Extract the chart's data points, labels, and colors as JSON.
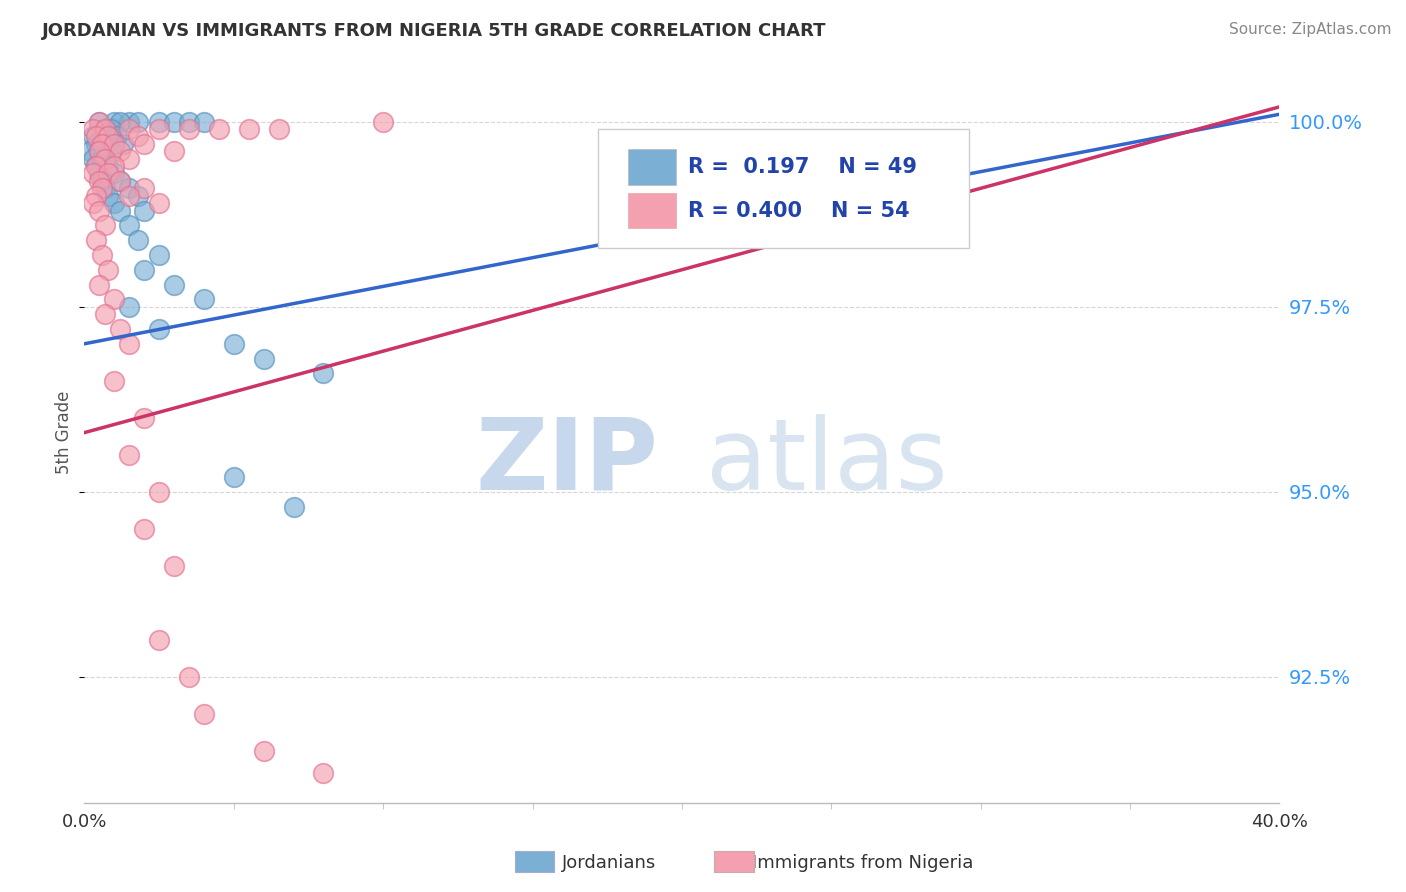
{
  "title": "JORDANIAN VS IMMIGRANTS FROM NIGERIA 5TH GRADE CORRELATION CHART",
  "source": "Source: ZipAtlas.com",
  "ylabel": "5th Grade",
  "ytick_labels": [
    "100.0%",
    "97.5%",
    "95.0%",
    "92.5%"
  ],
  "ytick_values": [
    1.0,
    0.975,
    0.95,
    0.925
  ],
  "xlim": [
    0.0,
    0.4
  ],
  "ylim": [
    0.908,
    1.008
  ],
  "legend_r_blue": "0.197",
  "legend_n_blue": "49",
  "legend_r_pink": "0.400",
  "legend_n_pink": "54",
  "blue_color": "#7BAFD4",
  "pink_color": "#F4A0B0",
  "blue_edge_color": "#5590BE",
  "pink_edge_color": "#E07090",
  "line_blue_color": "#3366CC",
  "line_pink_color": "#CC3366",
  "blue_line_x0": 0.0,
  "blue_line_y0": 0.97,
  "blue_line_x1": 0.4,
  "blue_line_y1": 1.001,
  "pink_line_x0": 0.0,
  "pink_line_y0": 0.958,
  "pink_line_x1": 0.4,
  "pink_line_y1": 1.002,
  "grid_color": "#CCCCCC",
  "grid_style": "--",
  "background_color": "#FFFFFF",
  "blue_scatter": [
    [
      0.005,
      1.0
    ],
    [
      0.01,
      1.0
    ],
    [
      0.015,
      1.0
    ],
    [
      0.012,
      1.0
    ],
    [
      0.018,
      1.0
    ],
    [
      0.025,
      1.0
    ],
    [
      0.03,
      1.0
    ],
    [
      0.035,
      1.0
    ],
    [
      0.04,
      1.0
    ],
    [
      0.007,
      0.999
    ],
    [
      0.009,
      0.999
    ],
    [
      0.003,
      0.998
    ],
    [
      0.006,
      0.998
    ],
    [
      0.008,
      0.998
    ],
    [
      0.011,
      0.998
    ],
    [
      0.004,
      0.997
    ],
    [
      0.007,
      0.997
    ],
    [
      0.013,
      0.997
    ],
    [
      0.002,
      0.996
    ],
    [
      0.005,
      0.996
    ],
    [
      0.009,
      0.996
    ],
    [
      0.003,
      0.995
    ],
    [
      0.006,
      0.995
    ],
    [
      0.004,
      0.994
    ],
    [
      0.008,
      0.994
    ],
    [
      0.005,
      0.993
    ],
    [
      0.01,
      0.993
    ],
    [
      0.006,
      0.992
    ],
    [
      0.012,
      0.992
    ],
    [
      0.007,
      0.991
    ],
    [
      0.015,
      0.991
    ],
    [
      0.008,
      0.99
    ],
    [
      0.018,
      0.99
    ],
    [
      0.01,
      0.989
    ],
    [
      0.012,
      0.988
    ],
    [
      0.02,
      0.988
    ],
    [
      0.015,
      0.986
    ],
    [
      0.018,
      0.984
    ],
    [
      0.025,
      0.982
    ],
    [
      0.02,
      0.98
    ],
    [
      0.03,
      0.978
    ],
    [
      0.04,
      0.976
    ],
    [
      0.015,
      0.975
    ],
    [
      0.025,
      0.972
    ],
    [
      0.05,
      0.97
    ],
    [
      0.06,
      0.968
    ],
    [
      0.08,
      0.966
    ],
    [
      0.05,
      0.952
    ],
    [
      0.07,
      0.948
    ]
  ],
  "pink_scatter": [
    [
      0.005,
      1.0
    ],
    [
      0.1,
      1.0
    ],
    [
      0.003,
      0.999
    ],
    [
      0.007,
      0.999
    ],
    [
      0.015,
      0.999
    ],
    [
      0.025,
      0.999
    ],
    [
      0.035,
      0.999
    ],
    [
      0.045,
      0.999
    ],
    [
      0.055,
      0.999
    ],
    [
      0.065,
      0.999
    ],
    [
      0.004,
      0.998
    ],
    [
      0.008,
      0.998
    ],
    [
      0.018,
      0.998
    ],
    [
      0.006,
      0.997
    ],
    [
      0.01,
      0.997
    ],
    [
      0.02,
      0.997
    ],
    [
      0.005,
      0.996
    ],
    [
      0.012,
      0.996
    ],
    [
      0.03,
      0.996
    ],
    [
      0.007,
      0.995
    ],
    [
      0.015,
      0.995
    ],
    [
      0.004,
      0.994
    ],
    [
      0.01,
      0.994
    ],
    [
      0.003,
      0.993
    ],
    [
      0.008,
      0.993
    ],
    [
      0.005,
      0.992
    ],
    [
      0.012,
      0.992
    ],
    [
      0.006,
      0.991
    ],
    [
      0.02,
      0.991
    ],
    [
      0.004,
      0.99
    ],
    [
      0.015,
      0.99
    ],
    [
      0.003,
      0.989
    ],
    [
      0.025,
      0.989
    ],
    [
      0.005,
      0.988
    ],
    [
      0.007,
      0.986
    ],
    [
      0.004,
      0.984
    ],
    [
      0.006,
      0.982
    ],
    [
      0.008,
      0.98
    ],
    [
      0.005,
      0.978
    ],
    [
      0.01,
      0.976
    ],
    [
      0.007,
      0.974
    ],
    [
      0.012,
      0.972
    ],
    [
      0.015,
      0.97
    ],
    [
      0.01,
      0.965
    ],
    [
      0.02,
      0.96
    ],
    [
      0.015,
      0.955
    ],
    [
      0.025,
      0.95
    ],
    [
      0.02,
      0.945
    ],
    [
      0.03,
      0.94
    ],
    [
      0.025,
      0.93
    ],
    [
      0.035,
      0.925
    ],
    [
      0.04,
      0.92
    ],
    [
      0.06,
      0.915
    ],
    [
      0.08,
      0.912
    ]
  ]
}
